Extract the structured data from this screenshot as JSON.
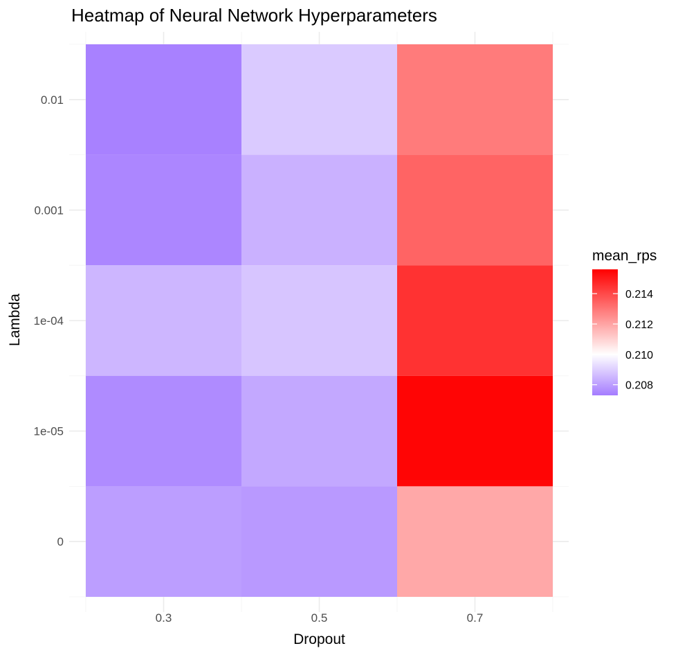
{
  "chart_data": {
    "type": "heatmap",
    "title": "Heatmap of Neural Network Hyperparameters",
    "xlabel": "Dropout",
    "ylabel": "Lambda",
    "x_categories": [
      "0.3",
      "0.5",
      "0.7"
    ],
    "y_categories": [
      "0",
      "1e-05",
      "1e-04",
      "0.001",
      "0.01"
    ],
    "cells": [
      {
        "x": "0.3",
        "y": "0.01",
        "value": 0.2074
      },
      {
        "x": "0.5",
        "y": "0.01",
        "value": 0.2089
      },
      {
        "x": "0.7",
        "y": "0.01",
        "value": 0.2129
      },
      {
        "x": "0.3",
        "y": "0.001",
        "value": 0.2075
      },
      {
        "x": "0.5",
        "y": "0.001",
        "value": 0.2084
      },
      {
        "x": "0.7",
        "y": "0.001",
        "value": 0.2134
      },
      {
        "x": "0.3",
        "y": "1e-04",
        "value": 0.2085
      },
      {
        "x": "0.5",
        "y": "1e-04",
        "value": 0.2088
      },
      {
        "x": "0.7",
        "y": "1e-04",
        "value": 0.2145
      },
      {
        "x": "0.3",
        "y": "1e-05",
        "value": 0.2076
      },
      {
        "x": "0.5",
        "y": "1e-05",
        "value": 0.2082
      },
      {
        "x": "0.7",
        "y": "1e-05",
        "value": 0.2155
      },
      {
        "x": "0.3",
        "y": "0",
        "value": 0.208
      },
      {
        "x": "0.5",
        "y": "0",
        "value": 0.2079
      },
      {
        "x": "0.7",
        "y": "0",
        "value": 0.2119
      }
    ],
    "legend": {
      "title": "mean_rps",
      "position": "right",
      "ticks": [
        0.208,
        0.21,
        0.212,
        0.214
      ],
      "tick_labels": [
        "0.208",
        "0.210",
        "0.212",
        "0.214"
      ],
      "range": [
        0.2073,
        0.2156
      ],
      "midpoint": 0.21,
      "low_color": "#a57cff",
      "mid_color": "#ffffff",
      "high_color": "#ff0000"
    },
    "grid": true
  }
}
